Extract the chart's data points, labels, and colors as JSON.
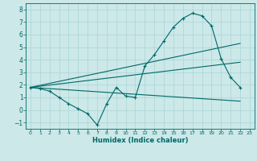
{
  "xlabel": "Humidex (Indice chaleur)",
  "xlim": [
    -0.5,
    23.5
  ],
  "ylim": [
    -1.5,
    8.5
  ],
  "xticks": [
    0,
    1,
    2,
    3,
    4,
    5,
    6,
    7,
    8,
    9,
    10,
    11,
    12,
    13,
    14,
    15,
    16,
    17,
    18,
    19,
    20,
    21,
    22,
    23
  ],
  "yticks": [
    -1,
    0,
    1,
    2,
    3,
    4,
    5,
    6,
    7,
    8
  ],
  "background_color": "#cce8e8",
  "grid_color": "#aad4d4",
  "line_color": "#006868",
  "line1_x": [
    0,
    1,
    2,
    3,
    4,
    5,
    6,
    7,
    8,
    9,
    10,
    11,
    12,
    13,
    14,
    15,
    16,
    17,
    18,
    19,
    20,
    21,
    22
  ],
  "line1_y": [
    1.8,
    1.7,
    1.5,
    1.0,
    0.5,
    0.1,
    -0.3,
    -1.2,
    0.5,
    1.8,
    1.1,
    1.0,
    3.5,
    4.4,
    5.5,
    6.6,
    7.3,
    7.7,
    7.5,
    6.7,
    4.1,
    2.6,
    1.8
  ],
  "line2_x": [
    0,
    22
  ],
  "line2_y": [
    1.8,
    5.3
  ],
  "line3_x": [
    0,
    22
  ],
  "line3_y": [
    1.8,
    3.8
  ],
  "line4_x": [
    0,
    22
  ],
  "line4_y": [
    1.8,
    0.7
  ]
}
